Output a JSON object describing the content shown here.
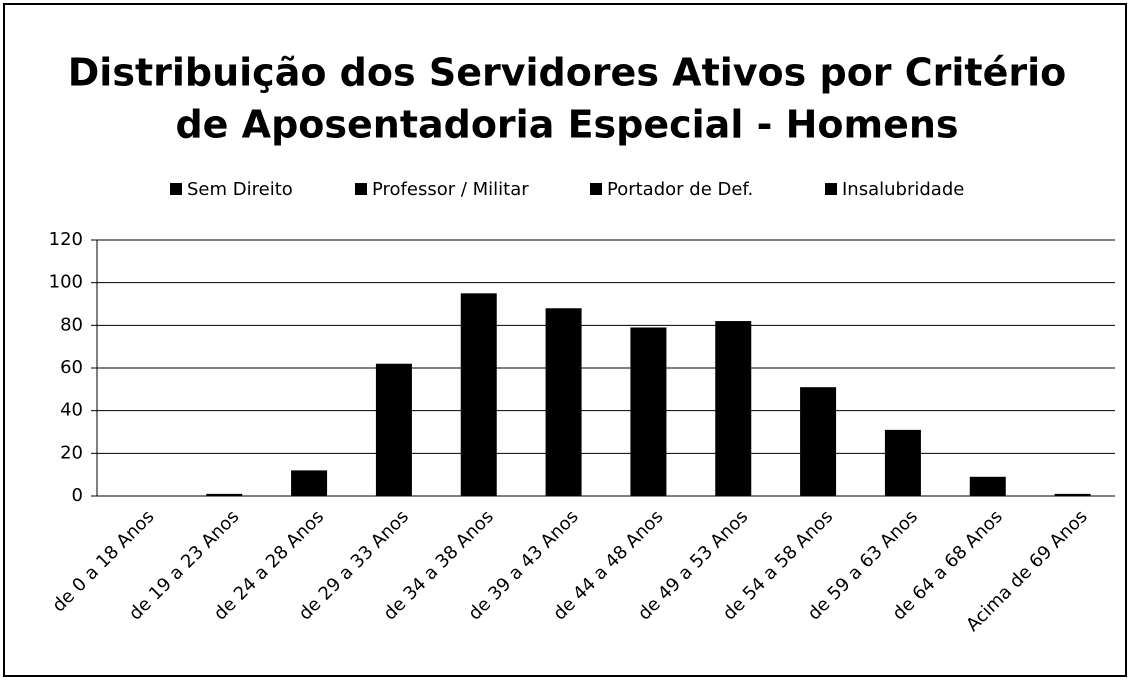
{
  "chart_data": {
    "type": "stacked-bar",
    "title": [
      "Distribuição dos Servidores Ativos por Critério",
      "de Aposentadoria Especial - Homens"
    ],
    "categories": [
      "de 0 a 18 Anos",
      "de 19 a 23 Anos",
      "de 24 a 28 Anos",
      "de 29 a 33 Anos",
      "de 34 a 38 Anos",
      "de 39 a 43 Anos",
      "de 44 a 48 Anos",
      "de 49 a 53 Anos",
      "de 54 a 58 Anos",
      "de 59 a 63 Anos",
      "de 64 a 68 Anos",
      "Acima de 69 Anos"
    ],
    "series": [
      {
        "name": "Sem Direito",
        "color": "#000000",
        "values": [
          0,
          1,
          12,
          62,
          95,
          88,
          79,
          82,
          51,
          31,
          9,
          1
        ]
      },
      {
        "name": "Professor / Militar",
        "color": "#000000",
        "values": [
          0,
          0,
          0,
          0,
          0,
          0,
          0,
          0,
          0,
          0,
          0,
          0
        ]
      },
      {
        "name": "Portador de Def.",
        "color": "#000000",
        "values": [
          0,
          0,
          0,
          0,
          0,
          0,
          0,
          0,
          0,
          0,
          0,
          0
        ]
      },
      {
        "name": "Insalubridade",
        "color": "#000000",
        "values": [
          0,
          0,
          0,
          0,
          0,
          0,
          0,
          0,
          0,
          0,
          0,
          0
        ]
      }
    ],
    "ylim": [
      0,
      120
    ],
    "yticks": [
      0,
      20,
      40,
      60,
      80,
      100,
      120
    ],
    "grid": true,
    "legend": "top"
  }
}
